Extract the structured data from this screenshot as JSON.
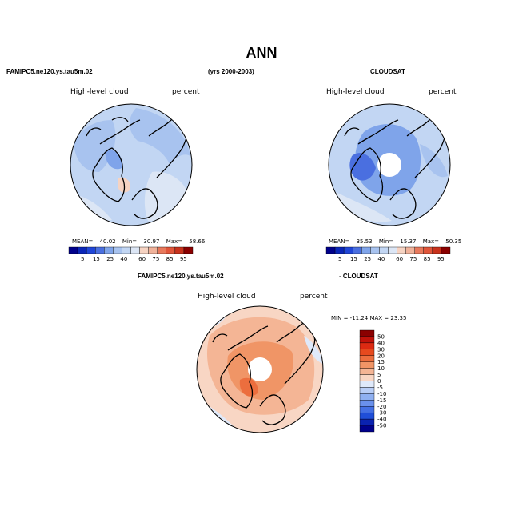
{
  "colors": {
    "pale_blue": "#dce6f5",
    "light_blue": "#c2d6f3",
    "mid_blue": "#a8c3ef",
    "blue": "#7fa4ea",
    "deep_blue": "#4a6fe0",
    "peach": "#f6d3c2",
    "salmon": "#f0b29a",
    "orange_red": "#e8795c"
  },
  "chart_data": [
    {
      "type": "heatmap",
      "panel": "model",
      "title": "ANN",
      "case_name": "FAMIPC5.ne120.ys.tau5m.02",
      "years": "(yrs 2000-2003)",
      "variable": "High-level cloud",
      "units": "percent",
      "mean_label": "MEAN=",
      "mean": "40.02",
      "min_label": "Min=",
      "min": "30.97",
      "max_label": "Max=",
      "max": "58.66",
      "colorbar": {
        "levels": [
          "5",
          "15",
          "25",
          "40",
          "60",
          "75",
          "85",
          "95"
        ],
        "colors": [
          "#00008b",
          "#0a26b8",
          "#2046d8",
          "#4a6fe0",
          "#7fa4ea",
          "#a8c3ef",
          "#c2d6f3",
          "#dce6f5",
          "#f6d3c2",
          "#f0b29a",
          "#e8795c",
          "#e0553a",
          "#c8321c",
          "#8b0000"
        ]
      }
    },
    {
      "type": "heatmap",
      "panel": "obs",
      "case_name": "CLOUDSAT",
      "variable": "High-level cloud",
      "units": "percent",
      "mean_label": "MEAN=",
      "mean": "35.53",
      "min_label": "Min=",
      "min": "15.37",
      "max_label": "Max=",
      "max": "50.35",
      "colorbar": {
        "levels": [
          "5",
          "15",
          "25",
          "40",
          "60",
          "75",
          "85",
          "95"
        ],
        "colors": [
          "#00008b",
          "#0a26b8",
          "#2046d8",
          "#4a6fe0",
          "#7fa4ea",
          "#a8c3ef",
          "#c2d6f3",
          "#dce6f5",
          "#f6d3c2",
          "#f0b29a",
          "#e8795c",
          "#e0553a",
          "#c8321c",
          "#8b0000"
        ]
      }
    },
    {
      "type": "heatmap",
      "panel": "diff",
      "case_name": "FAMIPC5.ne120.ys.tau5m.02",
      "minus_label": "- CLOUDSAT",
      "variable": "High-level cloud",
      "units": "percent",
      "range_text": "MIN = -11.24  MAX =  23.35",
      "colorbar": {
        "levels": [
          "50",
          "40",
          "30",
          "20",
          "15",
          "10",
          "5",
          "0",
          "-5",
          "-10",
          "-15",
          "-20",
          "-30",
          "-40",
          "-50"
        ],
        "colors": [
          "#8b0000",
          "#c0120a",
          "#dc2a12",
          "#e64a1e",
          "#ec6e3e",
          "#f09566",
          "#f4b595",
          "#f8d6c4",
          "#dfe9fa",
          "#b8cdf6",
          "#8fb0f1",
          "#6a91ec",
          "#4470e4",
          "#1f4ed8",
          "#0a22b0",
          "#00008b"
        ]
      }
    }
  ]
}
